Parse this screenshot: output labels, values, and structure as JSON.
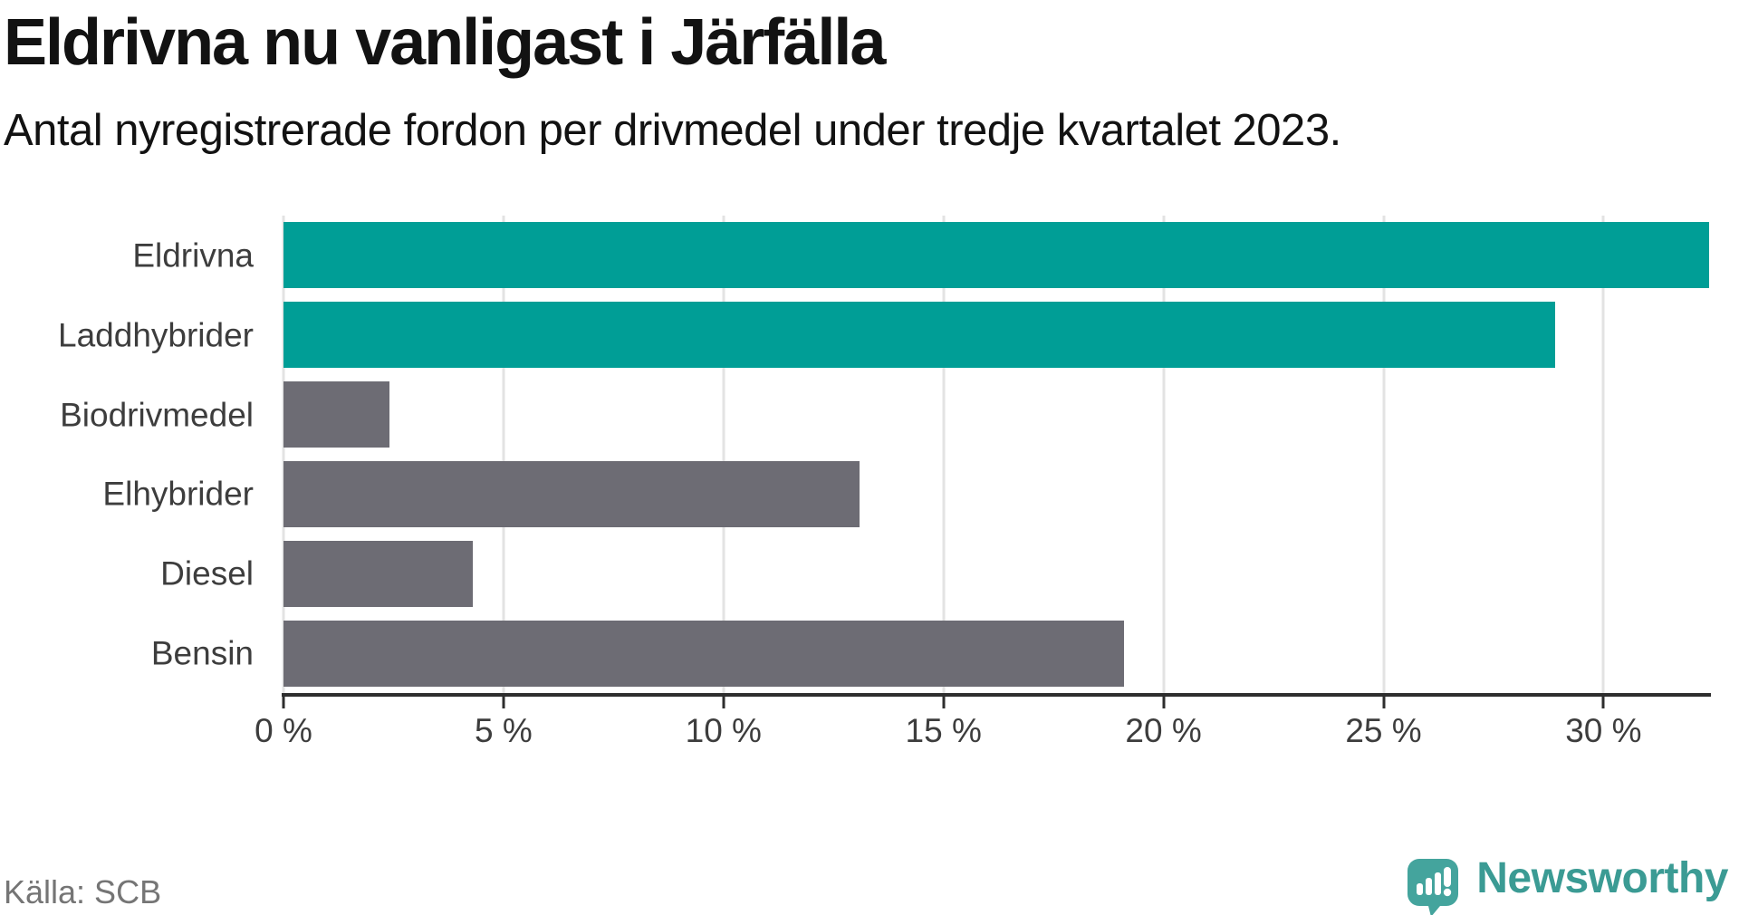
{
  "header": {
    "title": "Eldrivna nu vanligast i Järfälla",
    "subtitle": "Antal nyregistrerade fordon per drivmedel under tredje kvartalet 2023."
  },
  "footer": {
    "source": "Källa: SCB",
    "logo_text": "Newsworthy"
  },
  "colors": {
    "highlight_bar": "#009e96",
    "default_bar": "#6d6c74",
    "gridline": "#e3e3e3",
    "axis": "#2e2e2e",
    "label_text": "#3d3d3d",
    "title_text": "#121212",
    "source_text": "#757575",
    "logo_bubble": "#44a49d",
    "logo_text_color": "#3b9b94"
  },
  "chart_data": {
    "type": "bar",
    "orientation": "horizontal",
    "title": "Eldrivna nu vanligast i Järfälla",
    "subtitle": "Antal nyregistrerade fordon per drivmedel under tredje kvartalet 2023.",
    "categories": [
      "Eldrivna",
      "Laddhybrider",
      "Biodrivmedel",
      "Elhybrider",
      "Diesel",
      "Bensin"
    ],
    "values": [
      32.4,
      28.9,
      2.4,
      13.1,
      4.3,
      19.1
    ],
    "unit": "%",
    "bar_roles": [
      "highlight",
      "highlight",
      "default",
      "default",
      "default",
      "default"
    ],
    "xlim": [
      0,
      32.4
    ],
    "xticks": [
      0,
      5,
      10,
      15,
      20,
      25,
      30
    ],
    "xtick_labels": [
      "0 %",
      "5 %",
      "10 %",
      "15 %",
      "20 %",
      "25 %",
      "30 %"
    ],
    "grid": true,
    "legend": "none",
    "source": "Källa: SCB"
  }
}
